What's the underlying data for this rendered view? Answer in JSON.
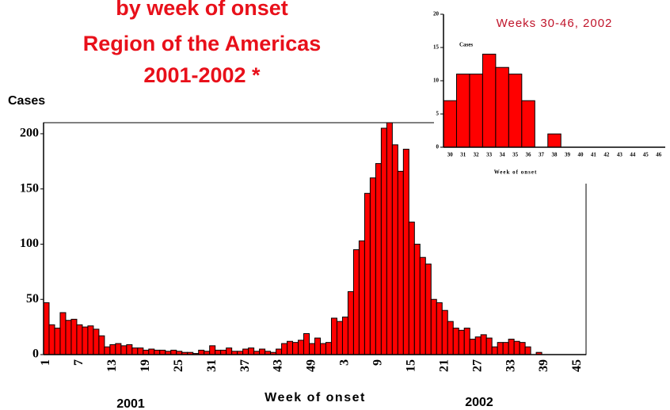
{
  "chart_data": [
    {
      "type": "bar",
      "title": [
        "by week of onset",
        "Region of the Americas",
        "2001-2002 *"
      ],
      "ylabel": "Cases",
      "xlabel": "Week of onset",
      "annotations": [
        "2001",
        "2002"
      ],
      "color": "#ff0000",
      "categories": [
        "1",
        null,
        null,
        null,
        null,
        null,
        "7",
        null,
        null,
        null,
        null,
        null,
        "13",
        null,
        null,
        null,
        null,
        null,
        "19",
        null,
        null,
        null,
        null,
        null,
        "25",
        null,
        null,
        null,
        null,
        null,
        "31",
        null,
        null,
        null,
        null,
        null,
        "37",
        null,
        null,
        null,
        null,
        null,
        "43",
        null,
        null,
        null,
        null,
        null,
        "49",
        null,
        null,
        null,
        null,
        null,
        "3",
        null,
        null,
        null,
        null,
        null,
        "9",
        null,
        null,
        null,
        null,
        null,
        "15",
        null,
        null,
        null,
        null,
        null,
        "21",
        null,
        null,
        null,
        null,
        null,
        "27",
        null,
        null,
        null,
        null,
        null,
        "33",
        null,
        null,
        null,
        null,
        null,
        "39",
        null,
        null,
        null,
        null,
        null,
        "45",
        null
      ],
      "values": [
        47,
        27,
        24,
        38,
        31,
        32,
        27,
        25,
        26,
        23,
        17,
        7,
        9,
        10,
        8,
        9,
        6,
        6,
        4,
        5,
        4,
        4,
        3,
        4,
        3,
        2,
        2,
        1,
        4,
        3,
        8,
        4,
        4,
        6,
        3,
        3,
        5,
        6,
        3,
        5,
        3,
        2,
        5,
        10,
        12,
        11,
        13,
        19,
        10,
        15,
        10,
        11,
        33,
        30,
        34,
        57,
        95,
        103,
        146,
        160,
        173,
        205,
        210,
        190,
        166,
        186,
        120,
        100,
        88,
        82,
        50,
        47,
        40,
        30,
        24,
        22,
        24,
        14,
        16,
        18,
        15,
        7,
        11,
        11,
        14,
        12,
        11,
        7,
        0,
        2,
        0,
        0,
        0,
        0,
        0,
        0,
        0,
        0
      ],
      "ylim": [
        0,
        210
      ],
      "yticks": [
        0,
        50,
        100,
        150,
        200
      ]
    },
    {
      "type": "bar",
      "title": "Weeks 30-46, 2002",
      "ylabel": "Cases",
      "xlabel": "Week of onset",
      "color": "#ff0000",
      "categories": [
        "30",
        "31",
        "32",
        "33",
        "34",
        "35",
        "36",
        "37",
        "38",
        "39",
        "40",
        "41",
        "42",
        "43",
        "44",
        "45",
        "46"
      ],
      "values": [
        7,
        11,
        11,
        14,
        12,
        11,
        7,
        0,
        2,
        0,
        0,
        0,
        0,
        0,
        0,
        0,
        0
      ],
      "ylim": [
        0,
        20
      ],
      "yticks": [
        0,
        5,
        10,
        15,
        20
      ]
    }
  ]
}
